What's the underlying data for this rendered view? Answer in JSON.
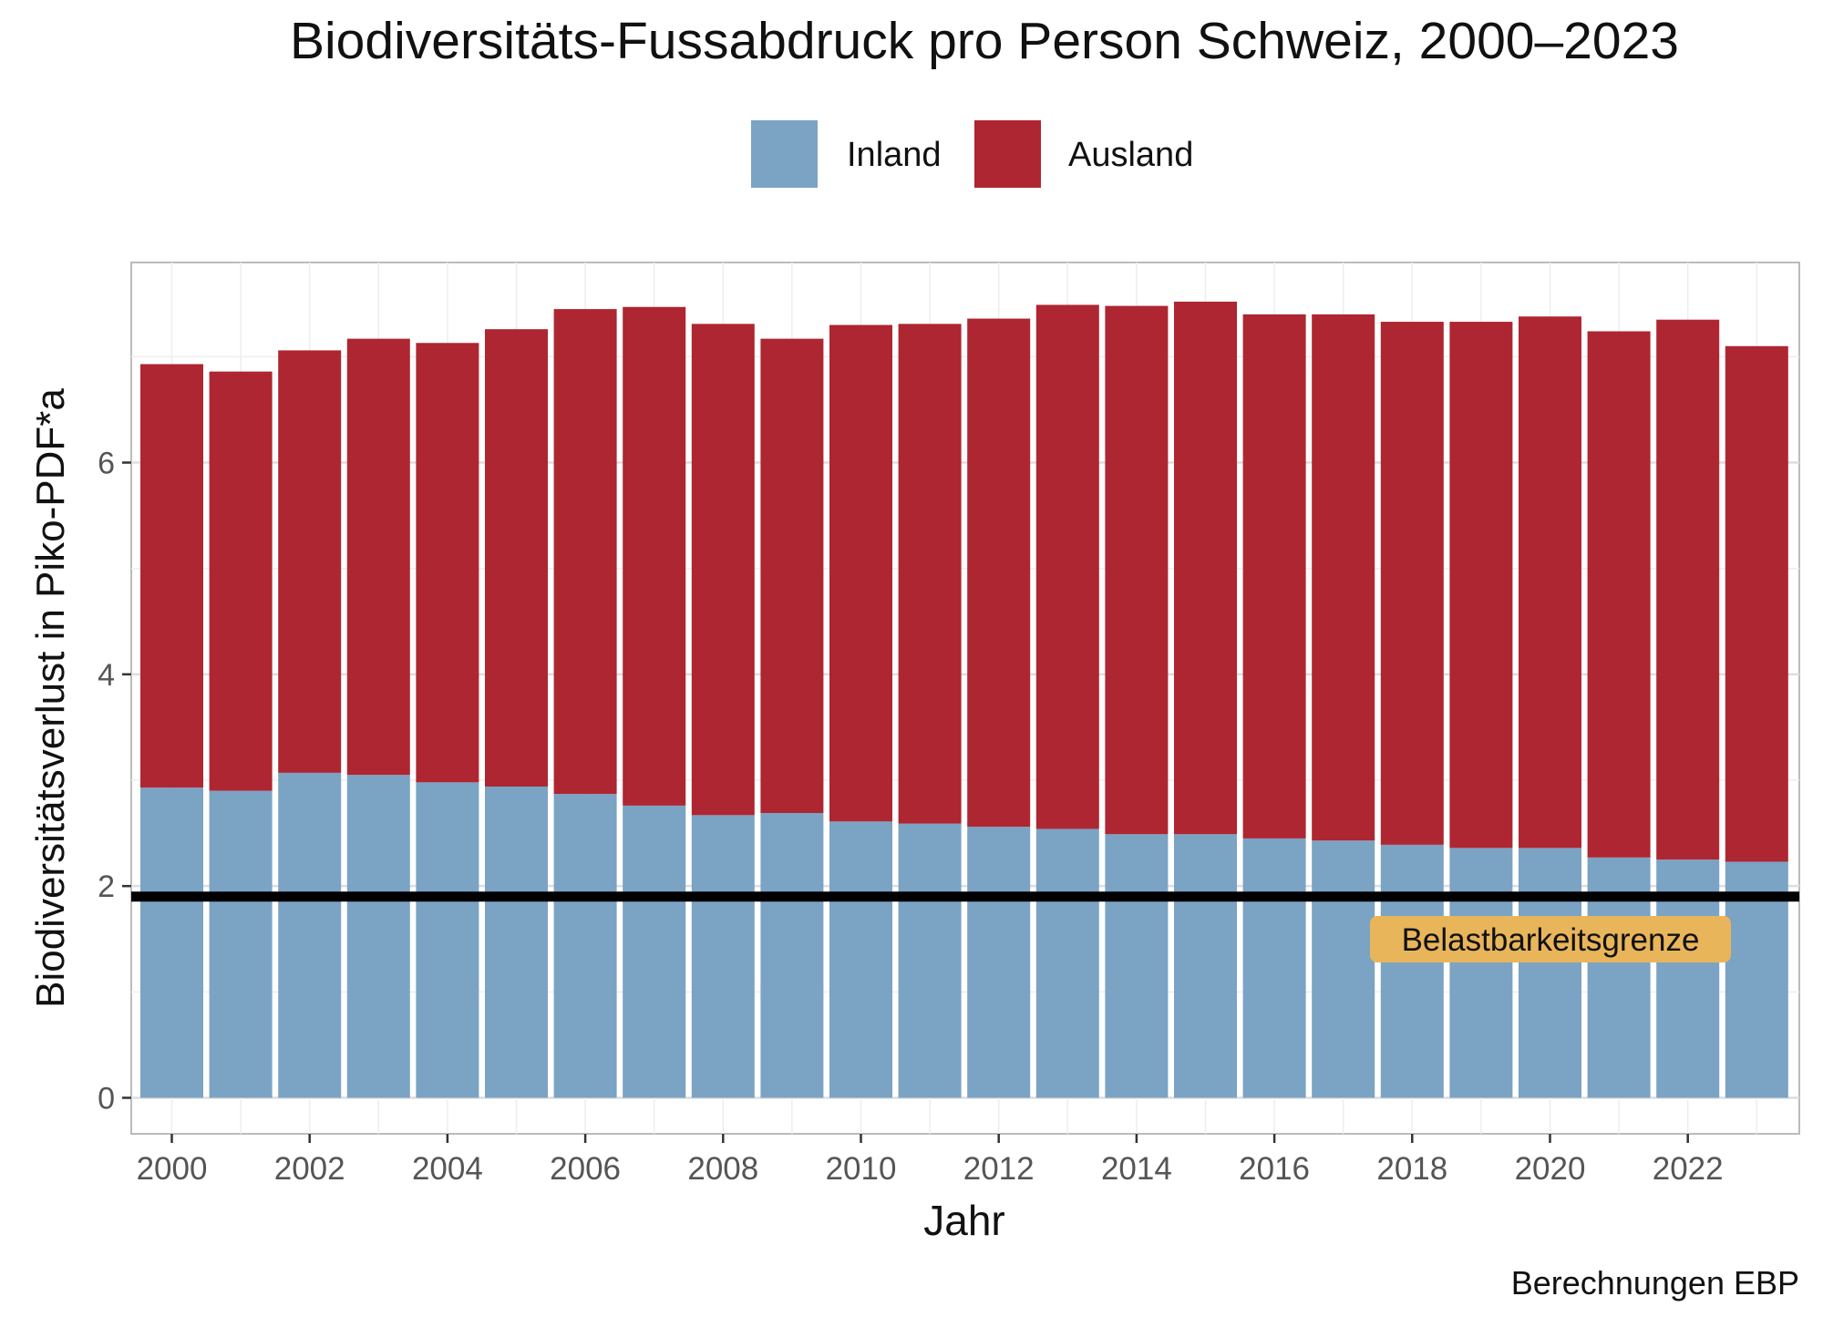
{
  "chart_data": {
    "type": "bar",
    "stacked": true,
    "title": "Biodiversitäts-Fussabdruck pro Person Schweiz, 2000–2023",
    "xlabel": "Jahr",
    "ylabel": "Biodiversitätsverlust in Piko-PDF*a",
    "caption": "Berechnungen EBP",
    "legend_position": "top",
    "grid": true,
    "ylim": [
      -0.34,
      7.89
    ],
    "yticks": [
      0,
      2,
      4,
      6
    ],
    "xticks": [
      2000,
      2002,
      2004,
      2006,
      2008,
      2010,
      2012,
      2014,
      2016,
      2018,
      2020,
      2022
    ],
    "categories": [
      2000,
      2001,
      2002,
      2003,
      2004,
      2005,
      2006,
      2007,
      2008,
      2009,
      2010,
      2011,
      2012,
      2013,
      2014,
      2015,
      2016,
      2017,
      2018,
      2019,
      2020,
      2021,
      2022,
      2023
    ],
    "series": [
      {
        "name": "Inland",
        "color": "#7BA3C4",
        "values": [
          2.93,
          2.9,
          3.07,
          3.05,
          2.98,
          2.94,
          2.87,
          2.76,
          2.67,
          2.69,
          2.61,
          2.59,
          2.56,
          2.54,
          2.49,
          2.49,
          2.45,
          2.43,
          2.39,
          2.36,
          2.36,
          2.27,
          2.25,
          2.23
        ]
      },
      {
        "name": "Ausland",
        "color": "#AE2631",
        "values": [
          4.0,
          3.96,
          3.99,
          4.12,
          4.15,
          4.32,
          4.58,
          4.71,
          4.64,
          4.48,
          4.69,
          4.72,
          4.8,
          4.95,
          4.99,
          5.03,
          4.95,
          4.97,
          4.94,
          4.97,
          5.02,
          4.97,
          5.1,
          4.87
        ]
      }
    ],
    "threshold": {
      "value": 1.9,
      "label": "Belastbarkeitsgrenze",
      "label_color": "#E8B55A"
    }
  }
}
